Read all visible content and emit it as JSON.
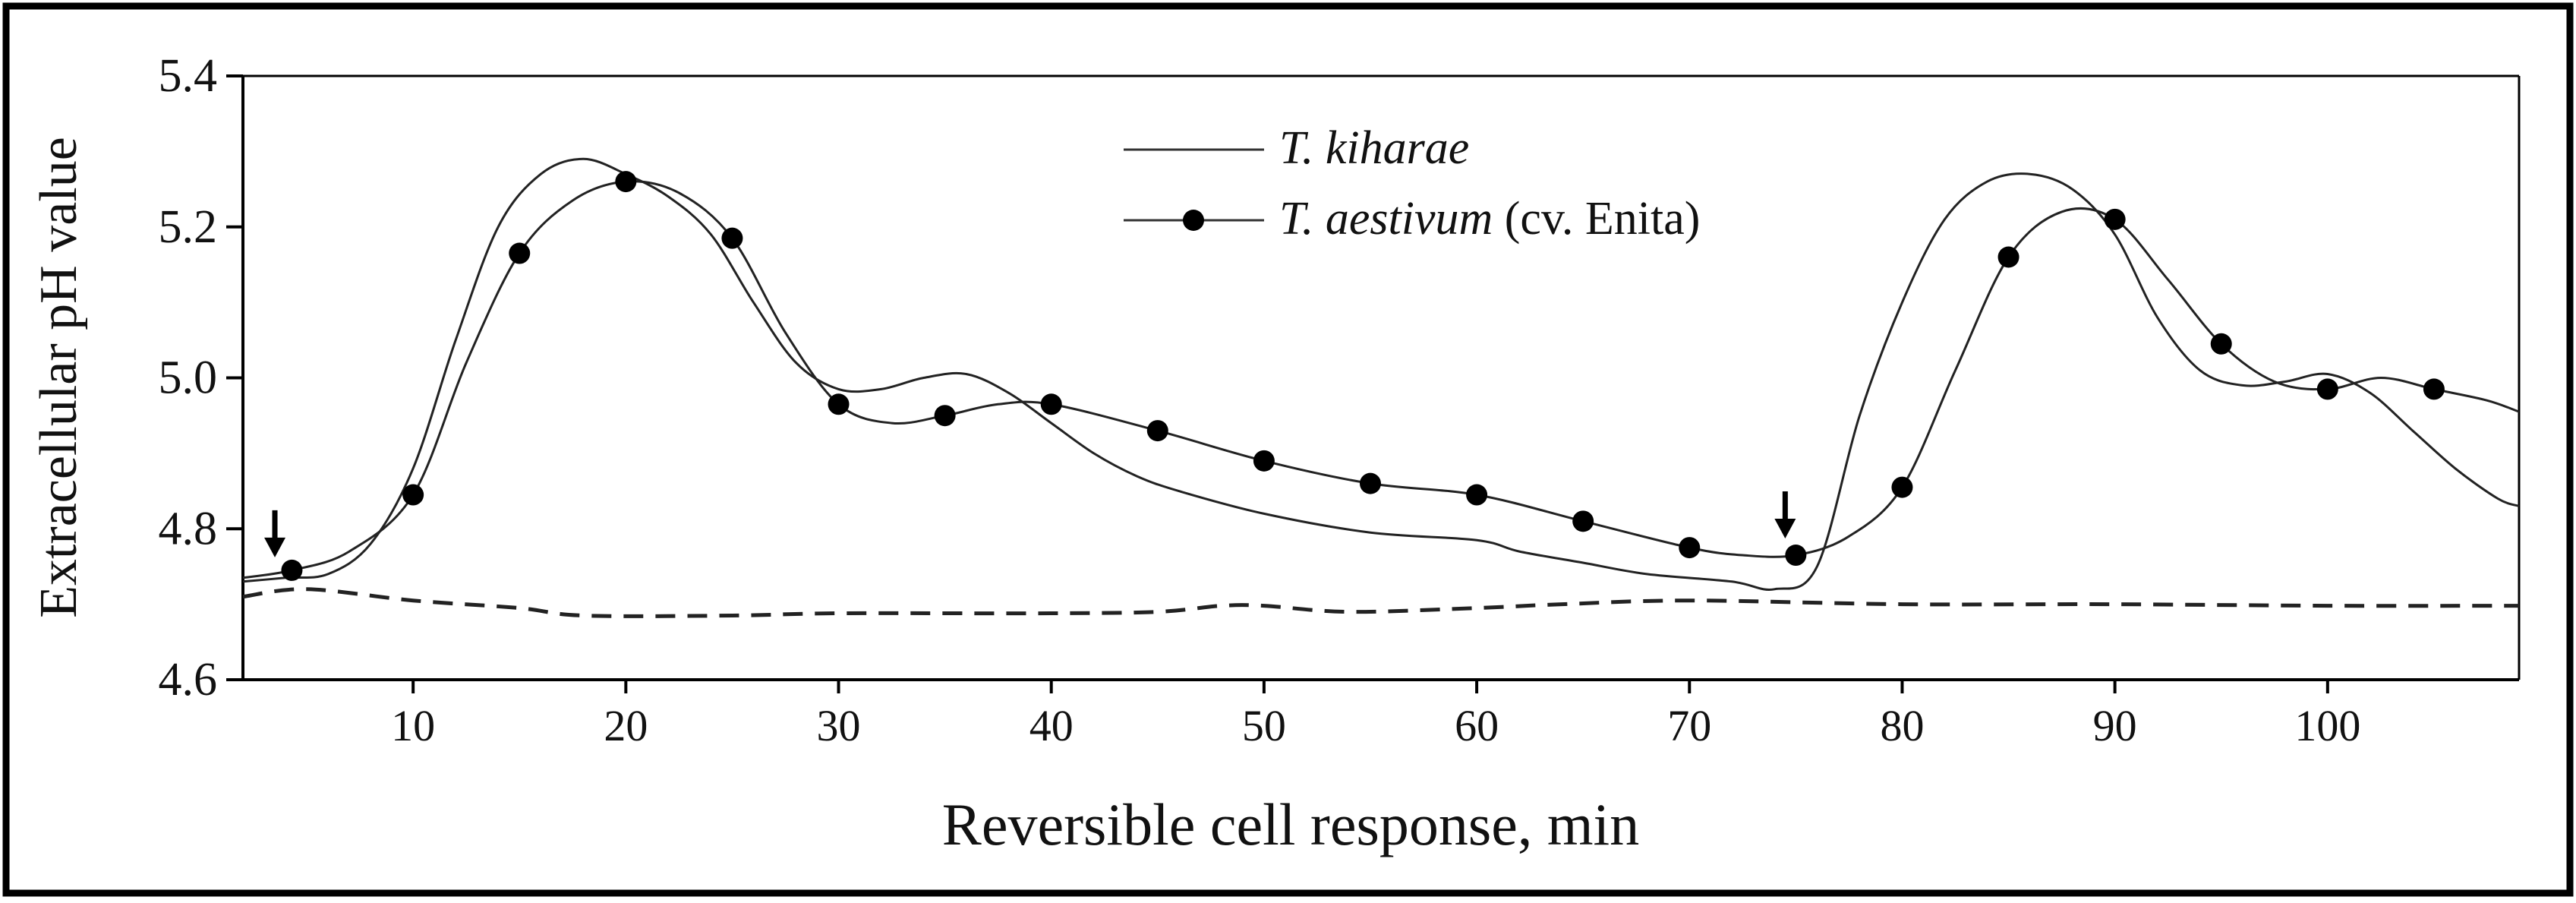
{
  "chart_data": {
    "type": "line",
    "title": "",
    "xlabel": "Reversible cell response, min",
    "ylabel": "Extracellular pH value",
    "xlim": [
      2,
      109
    ],
    "ylim": [
      4.6,
      5.4
    ],
    "x_ticks": [
      10,
      20,
      30,
      40,
      50,
      60,
      70,
      80,
      90,
      100
    ],
    "y_ticks": [
      4.6,
      4.8,
      5.0,
      5.2,
      5.4
    ],
    "x_tick_labels": [
      "10",
      "20",
      "30",
      "40",
      "50",
      "60",
      "70",
      "80",
      "90",
      "100"
    ],
    "y_tick_labels": [
      "4.6",
      "4.8",
      "5.0",
      "5.2",
      "5.4"
    ],
    "grid": false,
    "legend_position": "top-center",
    "series": [
      {
        "name_italic": "T. kiharae",
        "name_suffix": "",
        "style": "solid",
        "markers": false,
        "points": [
          [
            2,
            4.73
          ],
          [
            4,
            4.735
          ],
          [
            6,
            4.74
          ],
          [
            8,
            4.78
          ],
          [
            10,
            4.88
          ],
          [
            12,
            5.05
          ],
          [
            14,
            5.2
          ],
          [
            16,
            5.27
          ],
          [
            18,
            5.29
          ],
          [
            20,
            5.27
          ],
          [
            22,
            5.24
          ],
          [
            24,
            5.19
          ],
          [
            26,
            5.1
          ],
          [
            28,
            5.02
          ],
          [
            30,
            4.985
          ],
          [
            32,
            4.985
          ],
          [
            34,
            5.0
          ],
          [
            36,
            5.005
          ],
          [
            38,
            4.98
          ],
          [
            40,
            4.94
          ],
          [
            42,
            4.9
          ],
          [
            44,
            4.87
          ],
          [
            46,
            4.85
          ],
          [
            50,
            4.82
          ],
          [
            55,
            4.795
          ],
          [
            60,
            4.785
          ],
          [
            62,
            4.77
          ],
          [
            65,
            4.755
          ],
          [
            68,
            4.74
          ],
          [
            72,
            4.73
          ],
          [
            74,
            4.72
          ],
          [
            76,
            4.75
          ],
          [
            78,
            4.95
          ],
          [
            80,
            5.1
          ],
          [
            82,
            5.21
          ],
          [
            84,
            5.26
          ],
          [
            86,
            5.27
          ],
          [
            88,
            5.25
          ],
          [
            90,
            5.19
          ],
          [
            92,
            5.08
          ],
          [
            94,
            5.01
          ],
          [
            96,
            4.99
          ],
          [
            98,
            4.995
          ],
          [
            100,
            5.005
          ],
          [
            102,
            4.98
          ],
          [
            104,
            4.93
          ],
          [
            106,
            4.88
          ],
          [
            108,
            4.84
          ],
          [
            109,
            4.83
          ]
        ]
      },
      {
        "name_italic": "T. aestivum",
        "name_suffix": " (cv. Enita)",
        "style": "solid",
        "markers": true,
        "points": [
          [
            2,
            4.735
          ],
          [
            4.3,
            4.745
          ],
          [
            7,
            4.77
          ],
          [
            10,
            4.845
          ],
          [
            12.5,
            5.02
          ],
          [
            15,
            5.165
          ],
          [
            17.5,
            5.235
          ],
          [
            20,
            5.26
          ],
          [
            22.5,
            5.245
          ],
          [
            25,
            5.185
          ],
          [
            27.5,
            5.06
          ],
          [
            30,
            4.965
          ],
          [
            32.5,
            4.94
          ],
          [
            35,
            4.95
          ],
          [
            37.5,
            4.965
          ],
          [
            40,
            4.965
          ],
          [
            45,
            4.93
          ],
          [
            50,
            4.89
          ],
          [
            55,
            4.86
          ],
          [
            60,
            4.845
          ],
          [
            65,
            4.81
          ],
          [
            70,
            4.775
          ],
          [
            72.5,
            4.765
          ],
          [
            75,
            4.765
          ],
          [
            77.5,
            4.79
          ],
          [
            80,
            4.855
          ],
          [
            82.5,
            5.01
          ],
          [
            85,
            5.16
          ],
          [
            87.5,
            5.22
          ],
          [
            90,
            5.21
          ],
          [
            92.5,
            5.13
          ],
          [
            95,
            5.045
          ],
          [
            97.5,
            4.995
          ],
          [
            100,
            4.985
          ],
          [
            102.5,
            5.0
          ],
          [
            105,
            4.985
          ],
          [
            107.5,
            4.97
          ],
          [
            109,
            4.955
          ]
        ],
        "marker_x": [
          4.3,
          10,
          15,
          20,
          25,
          30,
          35,
          40,
          45,
          50,
          55,
          60,
          65,
          70,
          75,
          80,
          85,
          90,
          95,
          100,
          105
        ]
      },
      {
        "style": "dashed",
        "markers": false,
        "points": [
          [
            2,
            4.71
          ],
          [
            5,
            4.72
          ],
          [
            10,
            4.705
          ],
          [
            15,
            4.695
          ],
          [
            18,
            4.685
          ],
          [
            25,
            4.685
          ],
          [
            30,
            4.688
          ],
          [
            40,
            4.688
          ],
          [
            45,
            4.69
          ],
          [
            48,
            4.698
          ],
          [
            50,
            4.698
          ],
          [
            54,
            4.69
          ],
          [
            60,
            4.695
          ],
          [
            64,
            4.7
          ],
          [
            70,
            4.705
          ],
          [
            80,
            4.7
          ],
          [
            90,
            4.7
          ],
          [
            100,
            4.698
          ],
          [
            109,
            4.698
          ]
        ]
      }
    ],
    "annotations": [
      {
        "type": "arrow-down",
        "x": 3.5,
        "y": 4.74
      },
      {
        "type": "arrow-down",
        "x": 74.5,
        "y": 4.765
      }
    ]
  }
}
